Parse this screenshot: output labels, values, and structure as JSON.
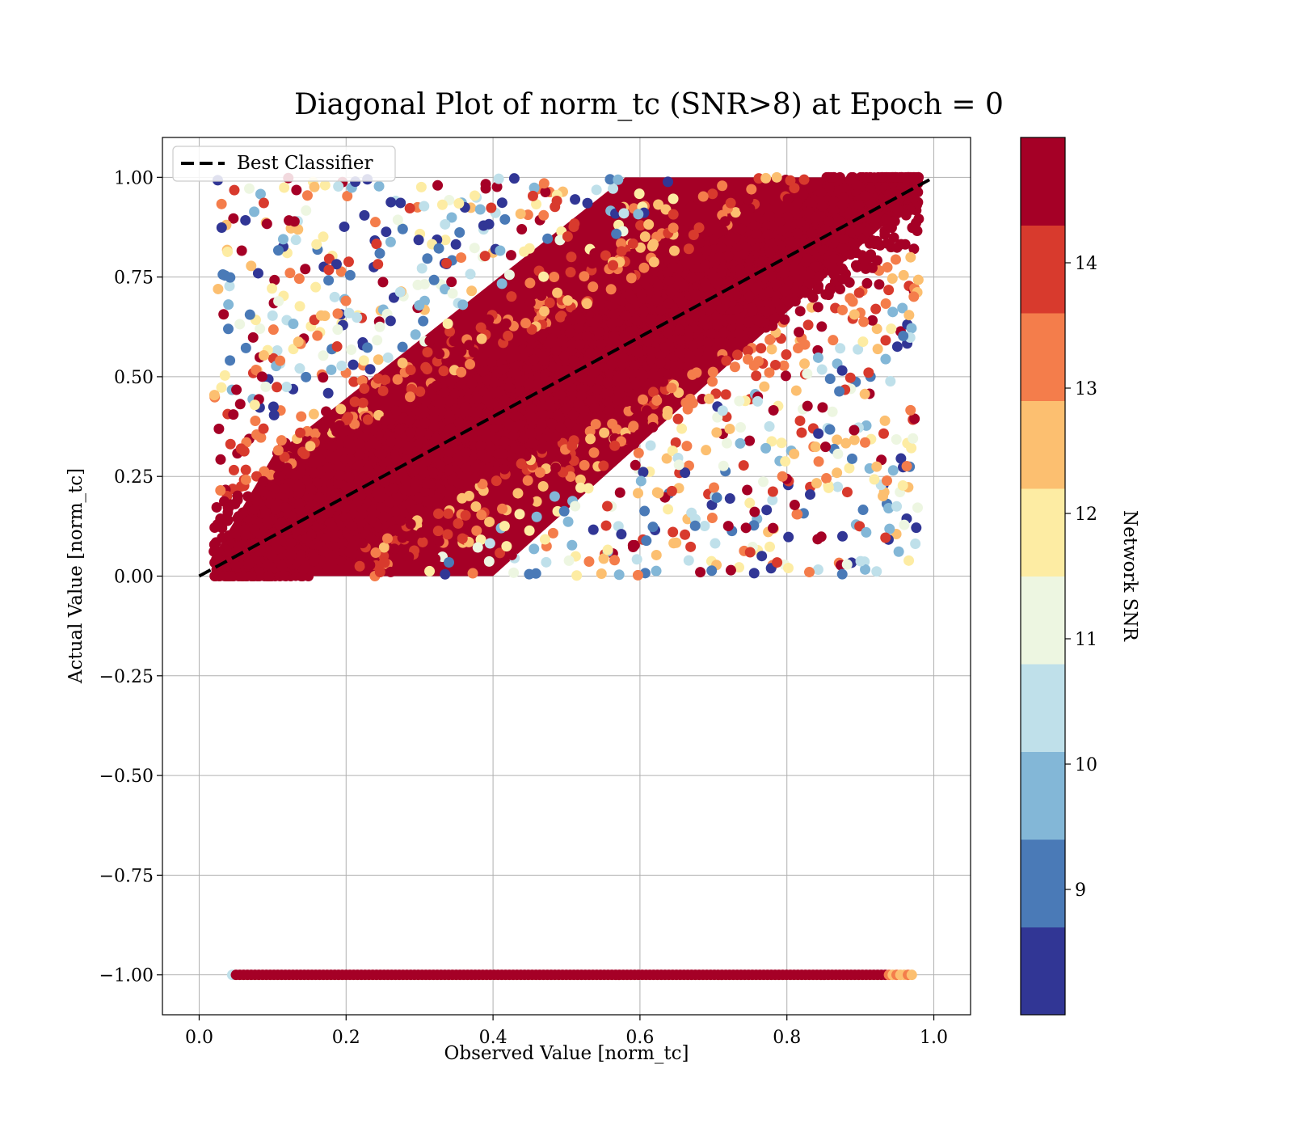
{
  "chart_data": {
    "type": "scatter",
    "title": "Diagonal Plot of norm_tc (SNR>8) at Epoch = 0",
    "xlabel": "Observed Value [norm_tc]",
    "ylabel": "Actual Value [norm_tc]",
    "xlim": [
      -0.05,
      1.05
    ],
    "ylim": [
      -1.1,
      1.1
    ],
    "x_ticks": [
      0.0,
      0.2,
      0.4,
      0.6,
      0.8,
      1.0
    ],
    "x_tick_labels": [
      "0.0",
      "0.2",
      "0.4",
      "0.6",
      "0.8",
      "1.0"
    ],
    "y_ticks": [
      1.0,
      0.75,
      0.5,
      0.25,
      0.0,
      -0.25,
      -0.5,
      -0.75,
      -1.0
    ],
    "y_tick_labels": [
      "1.00",
      "0.75",
      "0.50",
      "0.25",
      "0.00",
      "−0.25",
      "−0.50",
      "−0.75",
      "−1.00"
    ],
    "grid": true,
    "legend": {
      "placement": "upper-left",
      "entries": [
        "Best Classifier"
      ]
    },
    "reference_line": {
      "label": "Best Classifier",
      "style": "dashed",
      "color": "#000000",
      "x": [
        0.0,
        1.0
      ],
      "y": [
        0.0,
        1.0
      ]
    },
    "point_cloud": {
      "description": "dense scatter of predictions: most points near the diagonal y=x band; outlier points spread up to y=1.0 and down to y=0.0",
      "x_range": [
        0.02,
        0.98
      ],
      "y_range": [
        0.0,
        1.0
      ],
      "diagonal_band_halfwidth": 0.28,
      "separate_row": {
        "y": -1.0,
        "x_range": [
          0.045,
          0.97
        ]
      }
    },
    "colorbar": {
      "label": "Network SNR",
      "range": [
        8,
        15
      ],
      "ticks": [
        9,
        10,
        11,
        12,
        13,
        14
      ],
      "tick_labels": [
        "9",
        "10",
        "11",
        "12",
        "13",
        "14"
      ],
      "color_bins": [
        "#313695",
        "#4575b4",
        "#74add1",
        "#abd9e9",
        "#e0f3f8",
        "#ffffbf",
        "#fee090",
        "#fdae61",
        "#f46d43",
        "#d73027",
        "#a50026"
      ],
      "bin_colors_display": [
        "#313695",
        "#4a7ab7",
        "#83b7d7",
        "#bfe0ea",
        "#edf6e1",
        "#fdeca3",
        "#fcbf70",
        "#f47d4b",
        "#d83a2d",
        "#a50026"
      ]
    }
  }
}
